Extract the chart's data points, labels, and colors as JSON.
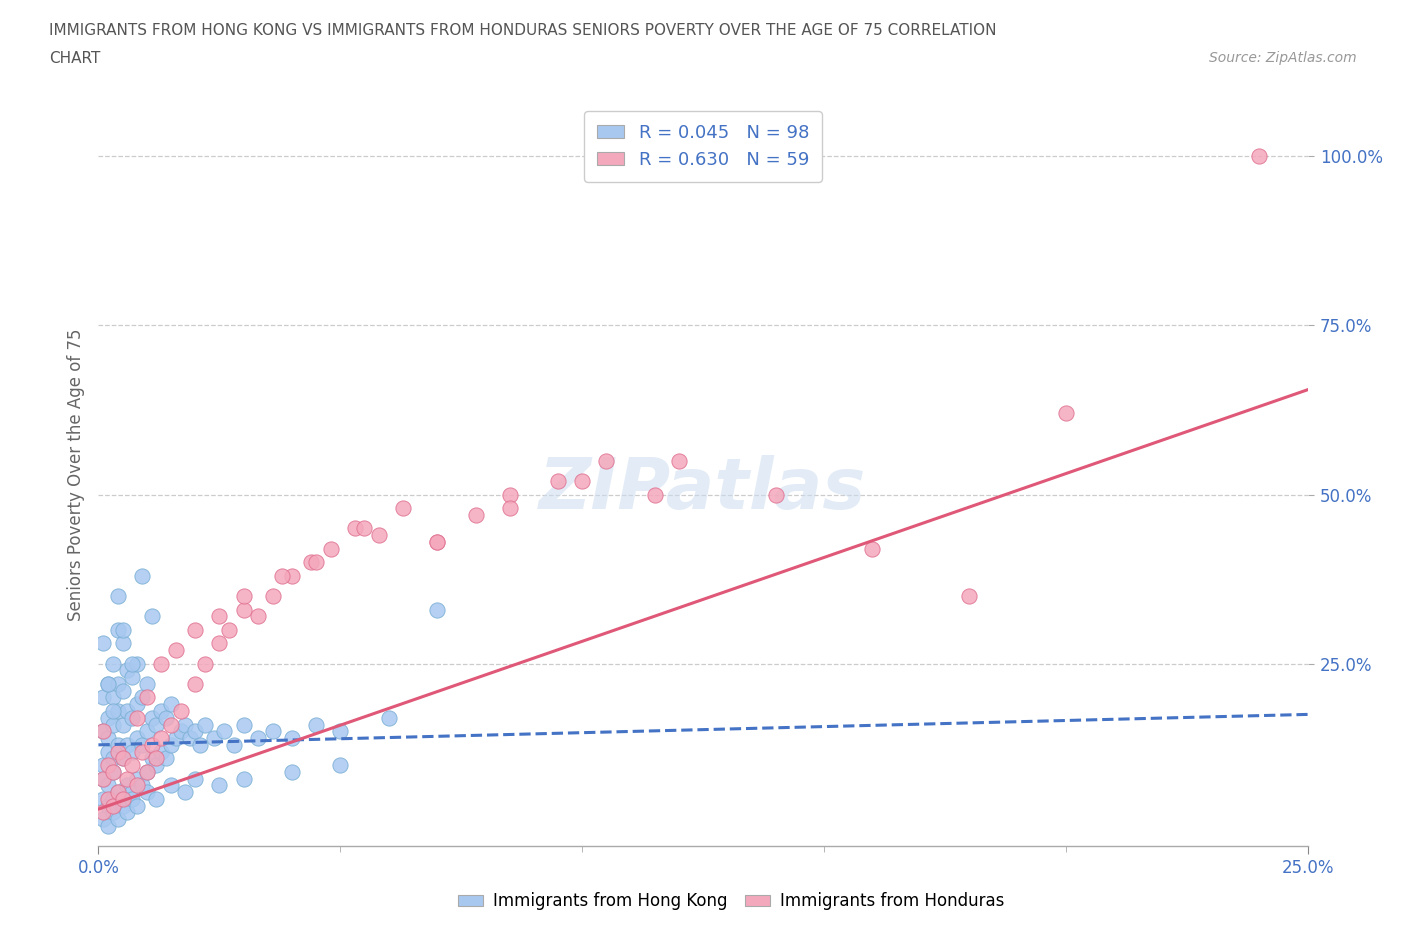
{
  "title_line1": "IMMIGRANTS FROM HONG KONG VS IMMIGRANTS FROM HONDURAS SENIORS POVERTY OVER THE AGE OF 75 CORRELATION",
  "title_line2": "CHART",
  "source_text": "Source: ZipAtlas.com",
  "ylabel": "Seniors Poverty Over the Age of 75",
  "xlim": [
    0.0,
    0.25
  ],
  "ylim": [
    -0.02,
    1.08
  ],
  "xtick_labels": [
    "0.0%",
    "25.0%"
  ],
  "xtick_values": [
    0.0,
    0.25
  ],
  "ytick_labels": [
    "25.0%",
    "50.0%",
    "75.0%",
    "100.0%"
  ],
  "ytick_values": [
    0.25,
    0.5,
    0.75,
    1.0
  ],
  "color_hk": "#a8c8f0",
  "color_hk_edge": "#7aafd4",
  "color_hn": "#f4a8bc",
  "color_hn_edge": "#e07090",
  "color_hk_line": "#4472c4",
  "color_hn_line": "#e05878",
  "R_hk": 0.045,
  "N_hk": 98,
  "R_hn": 0.63,
  "N_hn": 59,
  "legend_label_hk": "Immigrants from Hong Kong",
  "legend_label_hn": "Immigrants from Honduras",
  "watermark_text": "ZIPatlas",
  "grid_color": "#cccccc",
  "title_color": "#555555",
  "axis_label_color": "#4472c4",
  "hk_line_y0": 0.13,
  "hk_line_y1": 0.175,
  "hn_line_y0": 0.035,
  "hn_line_y1": 0.655,
  "hk_scatter_x": [
    0.001,
    0.001,
    0.001,
    0.001,
    0.001,
    0.002,
    0.002,
    0.002,
    0.002,
    0.002,
    0.002,
    0.003,
    0.003,
    0.003,
    0.003,
    0.003,
    0.003,
    0.004,
    0.004,
    0.004,
    0.004,
    0.004,
    0.005,
    0.005,
    0.005,
    0.005,
    0.005,
    0.006,
    0.006,
    0.006,
    0.006,
    0.007,
    0.007,
    0.007,
    0.007,
    0.008,
    0.008,
    0.008,
    0.008,
    0.009,
    0.009,
    0.009,
    0.01,
    0.01,
    0.01,
    0.011,
    0.011,
    0.012,
    0.012,
    0.013,
    0.013,
    0.014,
    0.014,
    0.015,
    0.015,
    0.016,
    0.017,
    0.018,
    0.019,
    0.02,
    0.021,
    0.022,
    0.024,
    0.026,
    0.028,
    0.03,
    0.033,
    0.036,
    0.04,
    0.045,
    0.05,
    0.06,
    0.001,
    0.002,
    0.003,
    0.004,
    0.005,
    0.006,
    0.007,
    0.008,
    0.01,
    0.012,
    0.015,
    0.018,
    0.02,
    0.025,
    0.03,
    0.04,
    0.05,
    0.07,
    0.001,
    0.002,
    0.003,
    0.004,
    0.005,
    0.007,
    0.009,
    0.011
  ],
  "hk_scatter_y": [
    0.05,
    0.1,
    0.15,
    0.2,
    0.08,
    0.04,
    0.12,
    0.17,
    0.22,
    0.07,
    0.14,
    0.05,
    0.11,
    0.16,
    0.2,
    0.09,
    0.25,
    0.06,
    0.13,
    0.18,
    0.22,
    0.3,
    0.05,
    0.11,
    0.16,
    0.21,
    0.28,
    0.07,
    0.13,
    0.18,
    0.24,
    0.06,
    0.12,
    0.17,
    0.23,
    0.08,
    0.14,
    0.19,
    0.25,
    0.07,
    0.13,
    0.2,
    0.09,
    0.15,
    0.22,
    0.11,
    0.17,
    0.1,
    0.16,
    0.12,
    0.18,
    0.11,
    0.17,
    0.13,
    0.19,
    0.14,
    0.15,
    0.16,
    0.14,
    0.15,
    0.13,
    0.16,
    0.14,
    0.15,
    0.13,
    0.16,
    0.14,
    0.15,
    0.14,
    0.16,
    0.15,
    0.17,
    0.02,
    0.01,
    0.03,
    0.02,
    0.04,
    0.03,
    0.05,
    0.04,
    0.06,
    0.05,
    0.07,
    0.06,
    0.08,
    0.07,
    0.08,
    0.09,
    0.1,
    0.33,
    0.28,
    0.22,
    0.18,
    0.35,
    0.3,
    0.25,
    0.38,
    0.32
  ],
  "hn_scatter_x": [
    0.001,
    0.001,
    0.001,
    0.002,
    0.002,
    0.003,
    0.003,
    0.004,
    0.004,
    0.005,
    0.005,
    0.006,
    0.007,
    0.008,
    0.009,
    0.01,
    0.011,
    0.012,
    0.013,
    0.015,
    0.017,
    0.02,
    0.022,
    0.025,
    0.027,
    0.03,
    0.033,
    0.036,
    0.04,
    0.044,
    0.048,
    0.053,
    0.058,
    0.063,
    0.07,
    0.078,
    0.085,
    0.095,
    0.105,
    0.115,
    0.008,
    0.01,
    0.013,
    0.016,
    0.02,
    0.025,
    0.03,
    0.038,
    0.045,
    0.055,
    0.07,
    0.085,
    0.1,
    0.12,
    0.14,
    0.16,
    0.18,
    0.2,
    0.24
  ],
  "hn_scatter_y": [
    0.03,
    0.08,
    0.15,
    0.05,
    0.1,
    0.04,
    0.09,
    0.06,
    0.12,
    0.05,
    0.11,
    0.08,
    0.1,
    0.07,
    0.12,
    0.09,
    0.13,
    0.11,
    0.14,
    0.16,
    0.18,
    0.22,
    0.25,
    0.28,
    0.3,
    0.33,
    0.32,
    0.35,
    0.38,
    0.4,
    0.42,
    0.45,
    0.44,
    0.48,
    0.43,
    0.47,
    0.5,
    0.52,
    0.55,
    0.5,
    0.17,
    0.2,
    0.25,
    0.27,
    0.3,
    0.32,
    0.35,
    0.38,
    0.4,
    0.45,
    0.43,
    0.48,
    0.52,
    0.55,
    0.5,
    0.42,
    0.35,
    0.62,
    1.0
  ],
  "background_color": "#ffffff"
}
